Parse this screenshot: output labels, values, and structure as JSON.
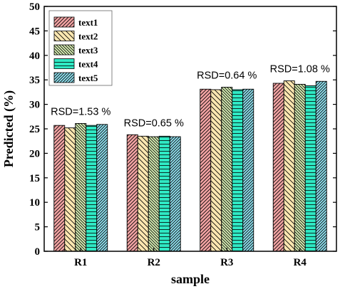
{
  "chart_data": {
    "type": "bar",
    "xlabel": "sample",
    "ylabel": "Predicted (%)",
    "ylim": [
      0,
      50
    ],
    "yticks": [
      0,
      5,
      10,
      15,
      20,
      25,
      30,
      35,
      40,
      45,
      50
    ],
    "categories": [
      "R1",
      "R2",
      "R3",
      "R4"
    ],
    "series": [
      {
        "name": "text1",
        "values": [
          25.7,
          23.8,
          33.1,
          34.3
        ]
      },
      {
        "name": "text2",
        "values": [
          25.2,
          23.5,
          33.0,
          34.8
        ]
      },
      {
        "name": "text3",
        "values": [
          26.1,
          23.4,
          33.5,
          34.1
        ]
      },
      {
        "name": "text4",
        "values": [
          25.7,
          23.5,
          33.0,
          33.8
        ]
      },
      {
        "name": "text5",
        "values": [
          25.9,
          23.4,
          33.1,
          34.7
        ]
      }
    ],
    "annotations": [
      "RSD=1.53 %",
      "RSD=0.65 %",
      "RSD=0.64 %",
      "RSD=1.08 %"
    ],
    "legend_position": "top-left",
    "grid": false,
    "colors": {
      "text1": "#f2a3a3",
      "text2": "#fbe6b0",
      "text3": "#d8efb4",
      "text4": "#2fe9c4",
      "text5": "#8fe0ee"
    },
    "patterns": {
      "text1": "diagonal-right",
      "text2": "diagonal-left",
      "text3": "diagonal-left",
      "text4": "horizontal",
      "text5": "diagonal-right"
    }
  }
}
